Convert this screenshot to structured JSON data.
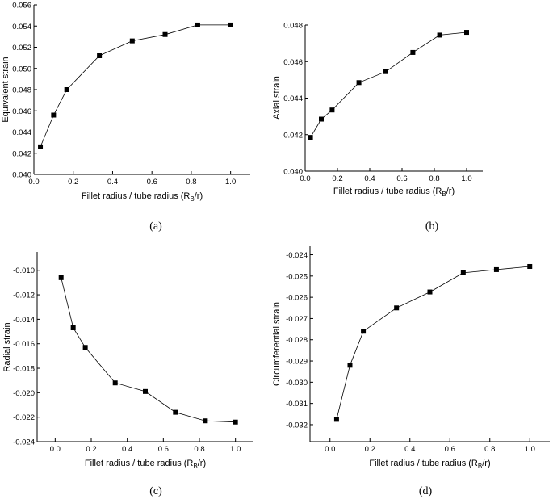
{
  "figure_captions": [
    "(a)",
    "(b)",
    "(c)",
    "(d)"
  ],
  "chart_data": [
    {
      "id": "a",
      "type": "line",
      "caption": "(a)",
      "xlabel": "Fillet radius / tube radius (R",
      "xlabel_sub": "B",
      "xlabel_tail": "/r)",
      "ylabel": "Equivalent strain",
      "xlim": [
        0.0,
        1.1
      ],
      "ylim": [
        0.04,
        0.056
      ],
      "xticks": [
        "0.0",
        "0.2",
        "0.4",
        "0.6",
        "0.8",
        "1.0"
      ],
      "xtick_values": [
        0.0,
        0.2,
        0.4,
        0.6,
        0.8,
        1.0
      ],
      "yticks": [
        "0.040",
        "0.042",
        "0.044",
        "0.046",
        "0.048",
        "0.050",
        "0.052",
        "0.054",
        "0.056"
      ],
      "ytick_values": [
        0.04,
        0.042,
        0.044,
        0.046,
        0.048,
        0.05,
        0.052,
        0.054,
        0.056
      ],
      "x": [
        0.033,
        0.1,
        0.167,
        0.333,
        0.5,
        0.667,
        0.833,
        1.0
      ],
      "y": [
        0.0426,
        0.0456,
        0.048,
        0.0512,
        0.0526,
        0.0532,
        0.0541,
        0.0541
      ],
      "marker": "square",
      "color": "#000000",
      "grid": false
    },
    {
      "id": "b",
      "type": "line",
      "caption": "(b)",
      "xlabel": "Fillet radius / tube radius (R",
      "xlabel_sub": "B",
      "xlabel_tail": "/r)",
      "ylabel": "Axial strain",
      "xlim": [
        0.0,
        1.1
      ],
      "ylim": [
        0.04,
        0.048
      ],
      "xticks": [
        "0.0",
        "0.2",
        "0.4",
        "0.6",
        "0.8",
        "1.0"
      ],
      "xtick_values": [
        0.0,
        0.2,
        0.4,
        0.6,
        0.8,
        1.0
      ],
      "yticks": [
        "0.040",
        "0.042",
        "0.044",
        "0.046",
        "0.048"
      ],
      "ytick_values": [
        0.04,
        0.042,
        0.044,
        0.046,
        0.048
      ],
      "x": [
        0.033,
        0.1,
        0.167,
        0.333,
        0.5,
        0.667,
        0.833,
        1.0
      ],
      "y": [
        0.04185,
        0.04285,
        0.04335,
        0.04485,
        0.04545,
        0.0465,
        0.04745,
        0.0476
      ],
      "marker": "square",
      "color": "#000000",
      "grid": false
    },
    {
      "id": "c",
      "type": "line",
      "caption": "(c)",
      "xlabel": "Fillet radius / tube radius (R",
      "xlabel_sub": "B",
      "xlabel_tail": "/r)",
      "ylabel": "Radial strain",
      "xlim": [
        -0.1,
        1.1
      ],
      "ylim": [
        -0.024,
        -0.0085
      ],
      "xticks": [
        "0.0",
        "0.2",
        "0.4",
        "0.6",
        "0.8",
        "1.0"
      ],
      "xtick_values": [
        0.0,
        0.2,
        0.4,
        0.6,
        0.8,
        1.0
      ],
      "yticks": [
        "-0.010",
        "-0.012",
        "-0.014",
        "-0.016",
        "-0.018",
        "-0.020",
        "-0.022",
        "-0.024"
      ],
      "ytick_values": [
        -0.01,
        -0.012,
        -0.014,
        -0.016,
        -0.018,
        -0.02,
        -0.022,
        -0.024
      ],
      "x": [
        0.033,
        0.1,
        0.167,
        0.333,
        0.5,
        0.667,
        0.833,
        1.0
      ],
      "y": [
        -0.0106,
        -0.0147,
        -0.0163,
        -0.0192,
        -0.0199,
        -0.0216,
        -0.0223,
        -0.0224
      ],
      "marker": "square",
      "color": "#000000",
      "grid": false
    },
    {
      "id": "d",
      "type": "line",
      "caption": "(d)",
      "xlabel": "Fillet radius / tube radius (R",
      "xlabel_sub": "B",
      "xlabel_tail": "/r)",
      "ylabel": "Circumferential strain",
      "xlim": [
        -0.1,
        1.1
      ],
      "ylim": [
        -0.0328,
        -0.0236
      ],
      "xticks": [
        "0.0",
        "0.2",
        "0.4",
        "0.6",
        "0.8",
        "1.0"
      ],
      "xtick_values": [
        0.0,
        0.2,
        0.4,
        0.6,
        0.8,
        1.0
      ],
      "yticks": [
        "-0.024",
        "-0.025",
        "-0.026",
        "-0.027",
        "-0.028",
        "-0.029",
        "-0.030",
        "-0.031",
        "-0.032"
      ],
      "ytick_values": [
        -0.024,
        -0.025,
        -0.026,
        -0.027,
        -0.028,
        -0.029,
        -0.03,
        -0.031,
        -0.032
      ],
      "x": [
        0.033,
        0.1,
        0.167,
        0.333,
        0.5,
        0.667,
        0.833,
        1.0
      ],
      "y": [
        -0.03175,
        -0.0292,
        -0.0276,
        -0.0265,
        -0.02575,
        -0.02485,
        -0.0247,
        -0.02455
      ],
      "marker": "square",
      "color": "#000000",
      "grid": false
    }
  ]
}
